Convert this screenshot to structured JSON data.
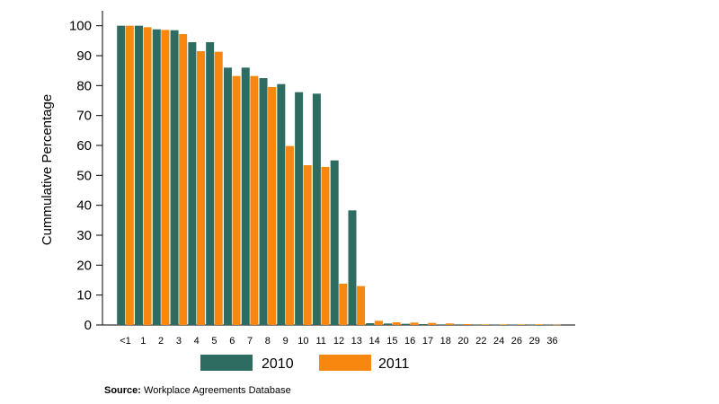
{
  "chart_data": {
    "type": "bar",
    "ylabel": "Cummulative Percentage",
    "xlabel": "",
    "ylim": [
      0,
      105
    ],
    "yticks": [
      0,
      10,
      20,
      30,
      40,
      50,
      60,
      70,
      80,
      90,
      100
    ],
    "categories": [
      "<1",
      "1",
      "2",
      "3",
      "4",
      "5",
      "6",
      "7",
      "8",
      "9",
      "10",
      "11",
      "12",
      "13",
      "14",
      "15",
      "16",
      "17",
      "18",
      "20",
      "22",
      "24",
      "26",
      "29",
      "36"
    ],
    "series": [
      {
        "name": "2010",
        "color": "#2e6b61",
        "values": [
          100,
          100,
          98.8,
          98.5,
          94.5,
          94.5,
          86,
          86,
          82.5,
          80.5,
          77.8,
          77.3,
          55,
          38.3,
          0.6,
          0.5,
          0.4,
          0.3,
          0.2,
          0.2,
          0.1,
          0.1,
          0.1,
          0.1,
          0.1
        ]
      },
      {
        "name": "2011",
        "color": "#f7870f",
        "values": [
          100,
          99.5,
          98.6,
          97.2,
          91.5,
          91.3,
          83.2,
          83.2,
          79.5,
          59.8,
          53.4,
          52.8,
          13.8,
          13,
          1.4,
          0.9,
          0.8,
          0.7,
          0.5,
          0.3,
          0.2,
          0.2,
          0.2,
          0.2,
          0.1
        ]
      }
    ],
    "legend_position": "bottom",
    "grid": false
  },
  "source": {
    "label": "Source:",
    "text": "Workplace Agreements Database"
  }
}
